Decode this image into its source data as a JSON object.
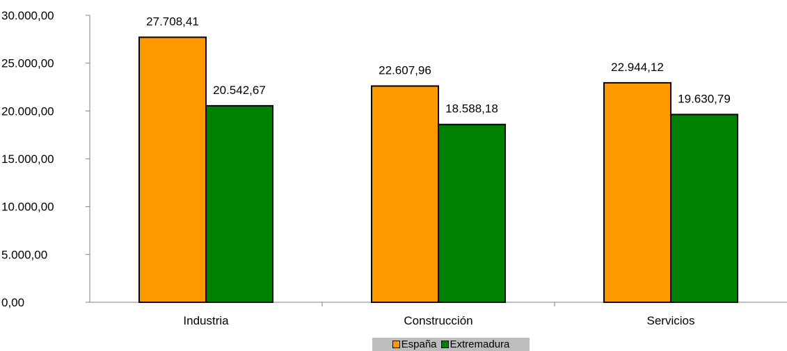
{
  "chart_data": {
    "type": "bar",
    "categories": [
      "Industria",
      "Construcción",
      "Servicios"
    ],
    "series": [
      {
        "name": "España",
        "values": [
          27708.41,
          22607.96,
          22944.12
        ],
        "labels": [
          "27.708,41",
          "22.607,96",
          "22.944,12"
        ],
        "color": "#ff9900"
      },
      {
        "name": "Extremadura",
        "values": [
          20542.67,
          18588.18,
          19630.79
        ],
        "labels": [
          "20.542,67",
          "18.588,18",
          "19.630,79"
        ],
        "color": "#008000"
      }
    ],
    "y_ticks": [
      0,
      5000,
      10000,
      15000,
      20000,
      25000,
      30000
    ],
    "y_tick_labels": [
      "0,00",
      "5.000,00",
      "10.000,00",
      "15.000,00",
      "20.000,00",
      "25.000,00",
      "30.000,00"
    ],
    "ylim": [
      0,
      30000
    ],
    "grid": false,
    "legend_position": "bottom"
  },
  "legend": {
    "items": [
      {
        "label": "España",
        "color": "#ff9900"
      },
      {
        "label": "Extremadura",
        "color": "#008000"
      }
    ]
  }
}
